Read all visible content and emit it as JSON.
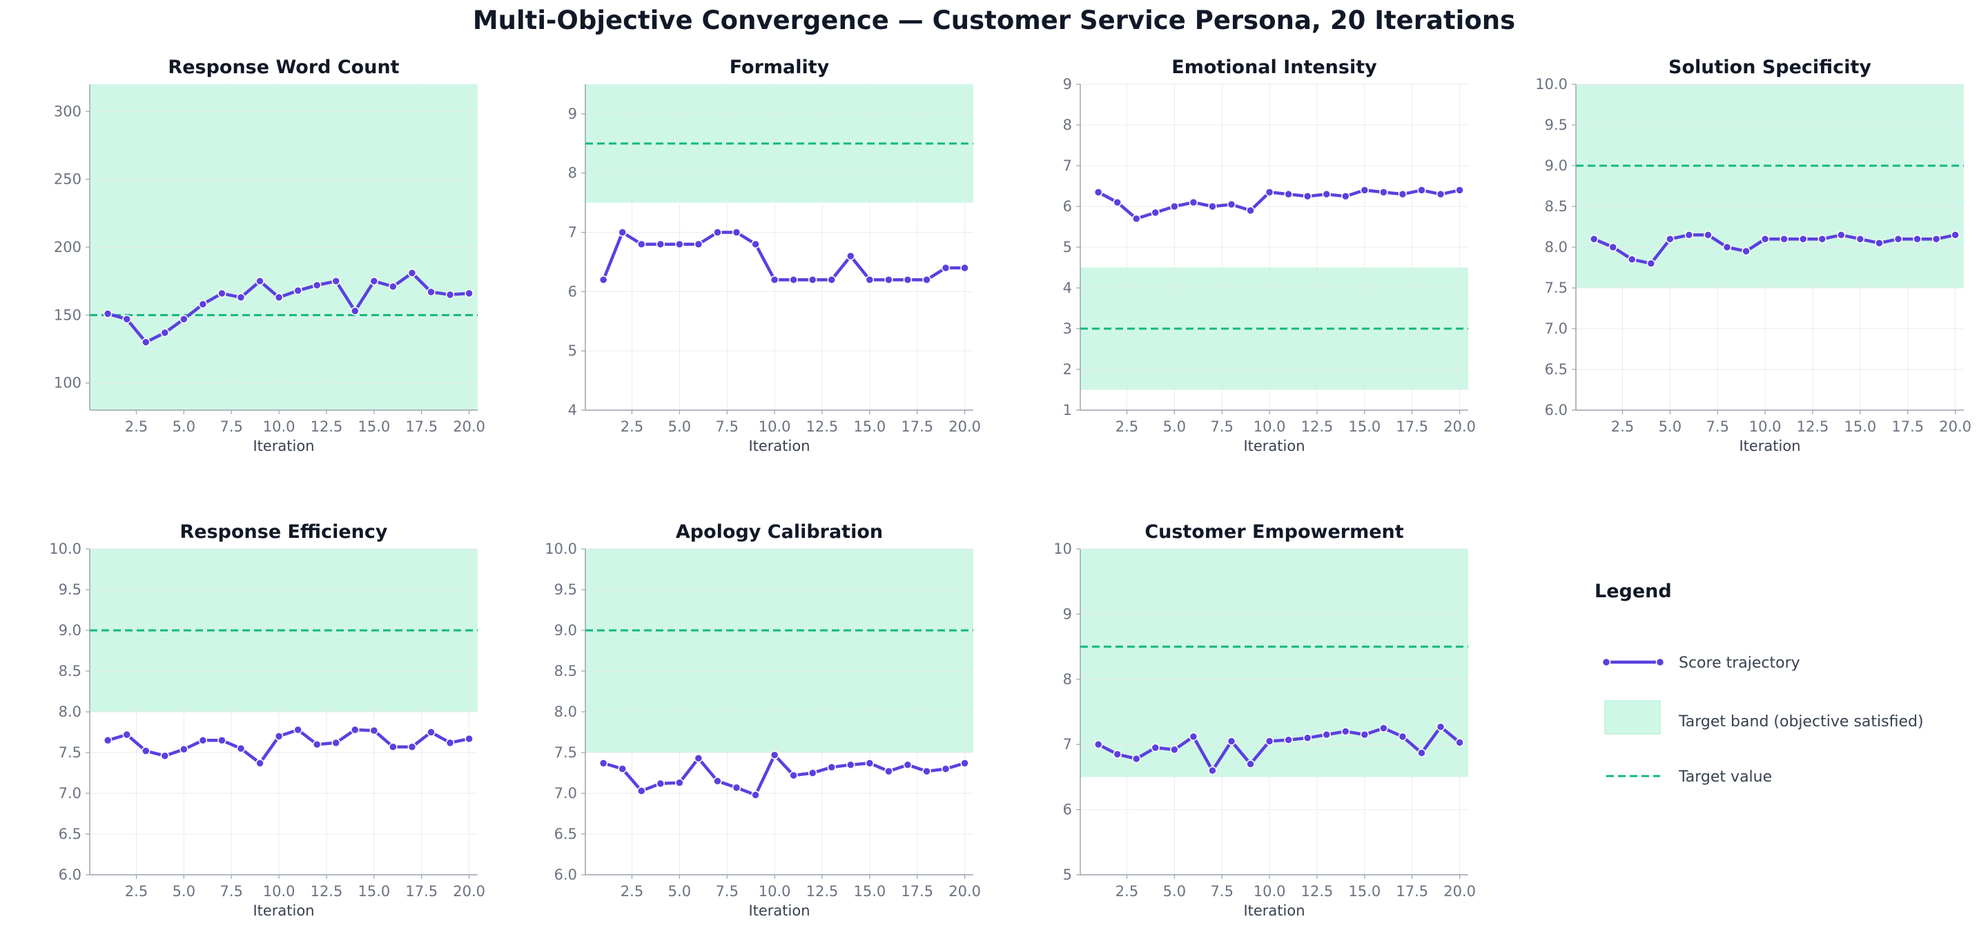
{
  "title": "Multi-Objective Convergence — Customer Service Persona, 20 Iterations",
  "colors": {
    "trajectory": "#5b3fe0",
    "target_line": "#10b981",
    "band": "#cff7e6",
    "grid": "#e5e7eb",
    "axis": "#9ca3af"
  },
  "legend": {
    "title": "Legend",
    "placement": "right",
    "items": [
      {
        "kind": "line-marker",
        "label": "Score trajectory"
      },
      {
        "kind": "band",
        "label": "Target band (objective satisfied)"
      },
      {
        "kind": "dashed",
        "label": "Target value"
      }
    ]
  },
  "chart_data": [
    {
      "type": "line",
      "title": "Response Word Count",
      "xlabel": "Iteration",
      "x": [
        1,
        2,
        3,
        4,
        5,
        6,
        7,
        8,
        9,
        10,
        11,
        12,
        13,
        14,
        15,
        16,
        17,
        18,
        19,
        20
      ],
      "values": [
        151,
        147,
        130,
        137,
        147,
        158,
        166,
        163,
        175,
        163,
        168,
        172,
        175,
        153,
        175,
        171,
        181,
        167,
        165,
        166
      ],
      "target": 150,
      "band": [
        80,
        320
      ],
      "ylim": [
        80,
        320
      ],
      "yticks": [
        100,
        150,
        200,
        250,
        300
      ],
      "ytick_labels": [
        "100",
        "150",
        "200",
        "250",
        "300"
      ],
      "xlim": [
        0.05,
        20.45
      ],
      "xticks": [
        2.5,
        5,
        7.5,
        10,
        12.5,
        15,
        17.5,
        20
      ],
      "xtick_labels": [
        "2.5",
        "5.0",
        "7.5",
        "10.0",
        "12.5",
        "15.0",
        "17.5",
        "20.0"
      ],
      "grid": true
    },
    {
      "type": "line",
      "title": "Formality",
      "xlabel": "Iteration",
      "x": [
        1,
        2,
        3,
        4,
        5,
        6,
        7,
        8,
        9,
        10,
        11,
        12,
        13,
        14,
        15,
        16,
        17,
        18,
        19,
        20
      ],
      "values": [
        6.2,
        7.0,
        6.8,
        6.8,
        6.8,
        6.8,
        7.0,
        7.0,
        6.8,
        6.2,
        6.2,
        6.2,
        6.2,
        6.6,
        6.2,
        6.2,
        6.2,
        6.2,
        6.4,
        6.4
      ],
      "target": 8.5,
      "band": [
        7.5,
        9.5
      ],
      "ylim": [
        4,
        9.5
      ],
      "yticks": [
        4,
        5,
        6,
        7,
        8,
        9
      ],
      "ytick_labels": [
        "4",
        "5",
        "6",
        "7",
        "8",
        "9"
      ],
      "xlim": [
        0.05,
        20.45
      ],
      "xticks": [
        2.5,
        5,
        7.5,
        10,
        12.5,
        15,
        17.5,
        20
      ],
      "xtick_labels": [
        "2.5",
        "5.0",
        "7.5",
        "10.0",
        "12.5",
        "15.0",
        "17.5",
        "20.0"
      ],
      "grid": true
    },
    {
      "type": "line",
      "title": "Emotional Intensity",
      "xlabel": "Iteration",
      "x": [
        1,
        2,
        3,
        4,
        5,
        6,
        7,
        8,
        9,
        10,
        11,
        12,
        13,
        14,
        15,
        16,
        17,
        18,
        19,
        20
      ],
      "values": [
        6.35,
        6.1,
        5.7,
        5.85,
        6.0,
        6.1,
        6.0,
        6.05,
        5.9,
        6.35,
        6.3,
        6.25,
        6.3,
        6.25,
        6.4,
        6.35,
        6.3,
        6.4,
        6.3,
        6.4
      ],
      "target": 3,
      "band": [
        1.5,
        4.5
      ],
      "ylim": [
        1,
        9
      ],
      "yticks": [
        1,
        2,
        3,
        4,
        5,
        6,
        7,
        8,
        9
      ],
      "ytick_labels": [
        "1",
        "2",
        "3",
        "4",
        "5",
        "6",
        "7",
        "8",
        "9"
      ],
      "xlim": [
        0.05,
        20.45
      ],
      "xticks": [
        2.5,
        5,
        7.5,
        10,
        12.5,
        15,
        17.5,
        20
      ],
      "xtick_labels": [
        "2.5",
        "5.0",
        "7.5",
        "10.0",
        "12.5",
        "15.0",
        "17.5",
        "20.0"
      ],
      "grid": true
    },
    {
      "type": "line",
      "title": "Solution Specificity",
      "xlabel": "Iteration",
      "x": [
        1,
        2,
        3,
        4,
        5,
        6,
        7,
        8,
        9,
        10,
        11,
        12,
        13,
        14,
        15,
        16,
        17,
        18,
        19,
        20
      ],
      "values": [
        8.1,
        8.0,
        7.85,
        7.8,
        8.1,
        8.15,
        8.15,
        8.0,
        7.95,
        8.1,
        8.1,
        8.1,
        8.1,
        8.15,
        8.1,
        8.05,
        8.1,
        8.1,
        8.1,
        8.15
      ],
      "target": 9,
      "band": [
        7.5,
        10
      ],
      "ylim": [
        6,
        10
      ],
      "yticks": [
        6,
        6.5,
        7,
        7.5,
        8,
        8.5,
        9,
        9.5,
        10
      ],
      "ytick_labels": [
        "6.0",
        "6.5",
        "7.0",
        "7.5",
        "8.0",
        "8.5",
        "9.0",
        "9.5",
        "10.0"
      ],
      "xlim": [
        0.05,
        20.45
      ],
      "xticks": [
        2.5,
        5,
        7.5,
        10,
        12.5,
        15,
        17.5,
        20
      ],
      "xtick_labels": [
        "2.5",
        "5.0",
        "7.5",
        "10.0",
        "12.5",
        "15.0",
        "17.5",
        "20.0"
      ],
      "grid": true
    },
    {
      "type": "line",
      "title": "Response Efficiency",
      "xlabel": "Iteration",
      "x": [
        1,
        2,
        3,
        4,
        5,
        6,
        7,
        8,
        9,
        10,
        11,
        12,
        13,
        14,
        15,
        16,
        17,
        18,
        19,
        20
      ],
      "values": [
        7.65,
        7.72,
        7.52,
        7.46,
        7.54,
        7.65,
        7.65,
        7.55,
        7.37,
        7.7,
        7.78,
        7.6,
        7.62,
        7.78,
        7.77,
        7.57,
        7.57,
        7.75,
        7.62,
        7.67
      ],
      "target": 9,
      "band": [
        8,
        10
      ],
      "ylim": [
        6,
        10
      ],
      "yticks": [
        6,
        6.5,
        7,
        7.5,
        8,
        8.5,
        9,
        9.5,
        10
      ],
      "ytick_labels": [
        "6.0",
        "6.5",
        "7.0",
        "7.5",
        "8.0",
        "8.5",
        "9.0",
        "9.5",
        "10.0"
      ],
      "xlim": [
        0.05,
        20.45
      ],
      "xticks": [
        2.5,
        5,
        7.5,
        10,
        12.5,
        15,
        17.5,
        20
      ],
      "xtick_labels": [
        "2.5",
        "5.0",
        "7.5",
        "10.0",
        "12.5",
        "15.0",
        "17.5",
        "20.0"
      ],
      "grid": true
    },
    {
      "type": "line",
      "title": "Apology Calibration",
      "xlabel": "Iteration",
      "x": [
        1,
        2,
        3,
        4,
        5,
        6,
        7,
        8,
        9,
        10,
        11,
        12,
        13,
        14,
        15,
        16,
        17,
        18,
        19,
        20
      ],
      "values": [
        7.37,
        7.3,
        7.03,
        7.12,
        7.13,
        7.43,
        7.15,
        7.07,
        6.98,
        7.47,
        7.22,
        7.25,
        7.32,
        7.35,
        7.37,
        7.27,
        7.35,
        7.27,
        7.3,
        7.37
      ],
      "target": 9,
      "band": [
        7.5,
        10
      ],
      "ylim": [
        6,
        10
      ],
      "yticks": [
        6,
        6.5,
        7,
        7.5,
        8,
        8.5,
        9,
        9.5,
        10
      ],
      "ytick_labels": [
        "6.0",
        "6.5",
        "7.0",
        "7.5",
        "8.0",
        "8.5",
        "9.0",
        "9.5",
        "10.0"
      ],
      "xlim": [
        0.05,
        20.45
      ],
      "xticks": [
        2.5,
        5,
        7.5,
        10,
        12.5,
        15,
        17.5,
        20
      ],
      "xtick_labels": [
        "2.5",
        "5.0",
        "7.5",
        "10.0",
        "12.5",
        "15.0",
        "17.5",
        "20.0"
      ],
      "grid": true
    },
    {
      "type": "line",
      "title": "Customer Empowerment",
      "xlabel": "Iteration",
      "x": [
        1,
        2,
        3,
        4,
        5,
        6,
        7,
        8,
        9,
        10,
        11,
        12,
        13,
        14,
        15,
        16,
        17,
        18,
        19,
        20
      ],
      "values": [
        7.0,
        6.85,
        6.78,
        6.95,
        6.92,
        7.12,
        6.6,
        7.05,
        6.7,
        7.05,
        7.07,
        7.1,
        7.15,
        7.2,
        7.15,
        7.25,
        7.12,
        6.87,
        7.27,
        7.03
      ],
      "target": 8.5,
      "band": [
        6.5,
        10
      ],
      "ylim": [
        5,
        10
      ],
      "yticks": [
        5,
        6,
        7,
        8,
        9,
        10
      ],
      "ytick_labels": [
        "5",
        "6",
        "7",
        "8",
        "9",
        "10"
      ],
      "xlim": [
        0.05,
        20.45
      ],
      "xticks": [
        2.5,
        5,
        7.5,
        10,
        12.5,
        15,
        17.5,
        20
      ],
      "xtick_labels": [
        "2.5",
        "5.0",
        "7.5",
        "10.0",
        "12.5",
        "15.0",
        "17.5",
        "20.0"
      ],
      "grid": true
    }
  ]
}
